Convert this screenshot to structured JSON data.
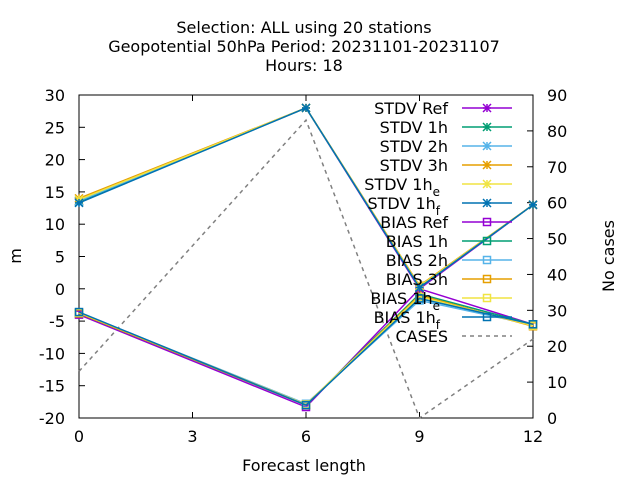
{
  "chart_data": {
    "type": "line",
    "title_lines": [
      "Selection: ALL using    20 stations",
      "Geopotential 50hPa   Period: 20231101-20231107",
      "Hours:  18"
    ],
    "xlabel": "Forecast length",
    "ylabel": "m",
    "y2label": "No cases",
    "x": [
      0,
      6,
      9,
      12
    ],
    "xticks": [
      "0",
      "3",
      "6",
      "9",
      "12"
    ],
    "xlim": [
      0,
      12
    ],
    "ylim": [
      -20,
      30
    ],
    "yticks": [
      "-20",
      "-15",
      "-10",
      "-5",
      "0",
      "5",
      "10",
      "15",
      "20",
      "25",
      "30"
    ],
    "y2lim": [
      0,
      90
    ],
    "y2ticks": [
      "0",
      "10",
      "20",
      "30",
      "40",
      "50",
      "60",
      "70",
      "80",
      "90"
    ],
    "legend_position": "top-right",
    "series": [
      {
        "name": "STDV Ref",
        "label": "STDV Ref",
        "sub": "",
        "color": "#9400d3",
        "marker": "x",
        "axis": "y1",
        "values": [
          13.5,
          28.0,
          0.0,
          13.0
        ]
      },
      {
        "name": "STDV 1h",
        "label": "STDV 1h",
        "sub": "",
        "color": "#009e73",
        "marker": "x",
        "axis": "y1",
        "values": [
          13.5,
          28.0,
          0.2,
          13.0
        ]
      },
      {
        "name": "STDV 2h",
        "label": "STDV 2h",
        "sub": "",
        "color": "#56b4e9",
        "marker": "x",
        "axis": "y1",
        "values": [
          13.6,
          28.0,
          0.3,
          13.0
        ]
      },
      {
        "name": "STDV 3h",
        "label": "STDV 3h",
        "sub": "",
        "color": "#e69f00",
        "marker": "x",
        "axis": "y1",
        "values": [
          14.0,
          28.0,
          0.5,
          13.0
        ]
      },
      {
        "name": "STDV 1h_e",
        "label": "STDV 1h",
        "sub": "e",
        "color": "#f0e442",
        "marker": "x",
        "axis": "y1",
        "values": [
          13.8,
          28.0,
          0.4,
          13.0
        ]
      },
      {
        "name": "STDV 1h_f",
        "label": "STDV 1h",
        "sub": "f",
        "color": "#0072b2",
        "marker": "x",
        "axis": "y1",
        "values": [
          13.3,
          28.0,
          0.2,
          13.0
        ]
      },
      {
        "name": "BIAS Ref",
        "label": "BIAS Ref",
        "sub": "",
        "color": "#9400d3",
        "marker": "square",
        "axis": "y1",
        "values": [
          -4.0,
          -18.3,
          0.0,
          -5.5
        ]
      },
      {
        "name": "BIAS 1h",
        "label": "BIAS 1h",
        "sub": "",
        "color": "#009e73",
        "marker": "square",
        "axis": "y1",
        "values": [
          -3.8,
          -18.0,
          -0.8,
          -5.5
        ]
      },
      {
        "name": "BIAS 2h",
        "label": "BIAS 2h",
        "sub": "",
        "color": "#56b4e9",
        "marker": "square",
        "axis": "y1",
        "values": [
          -3.7,
          -17.8,
          -1.8,
          -5.6
        ]
      },
      {
        "name": "BIAS 3h",
        "label": "BIAS 3h",
        "sub": "",
        "color": "#e69f00",
        "marker": "square",
        "axis": "y1",
        "values": [
          -3.8,
          -18.0,
          -1.0,
          -5.8
        ]
      },
      {
        "name": "BIAS 1h_e",
        "label": "BIAS 1h",
        "sub": "e",
        "color": "#f0e442",
        "marker": "square",
        "axis": "y1",
        "values": [
          -3.7,
          -17.9,
          -1.2,
          -5.7
        ]
      },
      {
        "name": "BIAS 1h_f",
        "label": "BIAS 1h",
        "sub": "f",
        "color": "#0072b2",
        "marker": "square",
        "axis": "y1",
        "values": [
          -3.6,
          -18.0,
          -1.5,
          -5.5
        ]
      },
      {
        "name": "CASES",
        "label": "CASES",
        "sub": "",
        "color": "#808080",
        "marker": "none",
        "dashed": true,
        "axis": "y2",
        "values": [
          13,
          83,
          0,
          22
        ]
      }
    ]
  }
}
